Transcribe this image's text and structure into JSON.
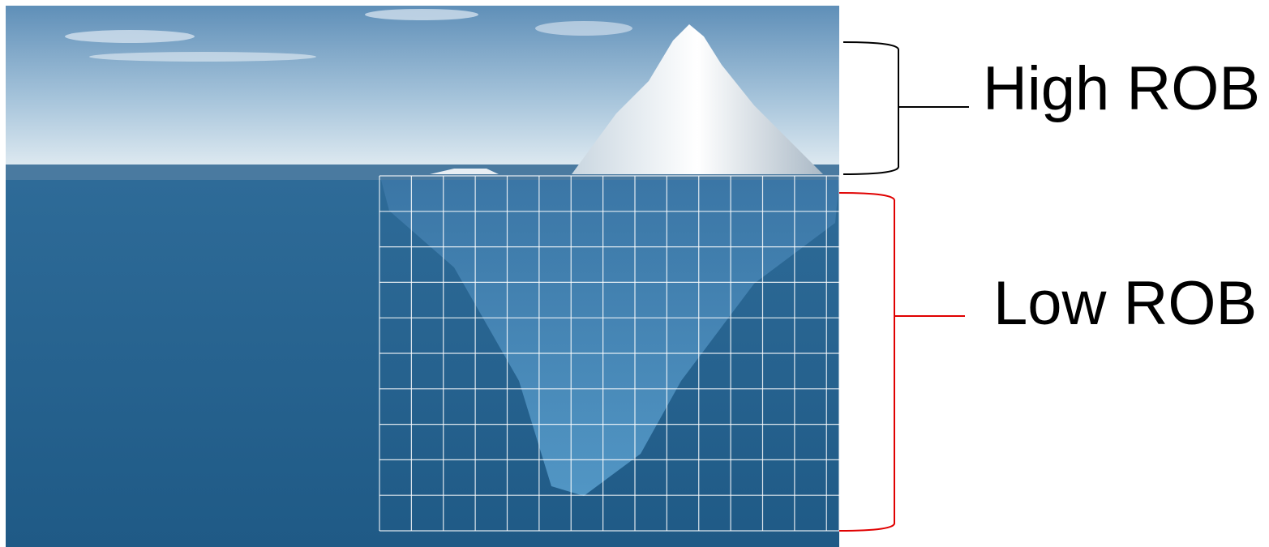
{
  "labels": {
    "high": "High ROB",
    "low": "Low ROB"
  }
}
